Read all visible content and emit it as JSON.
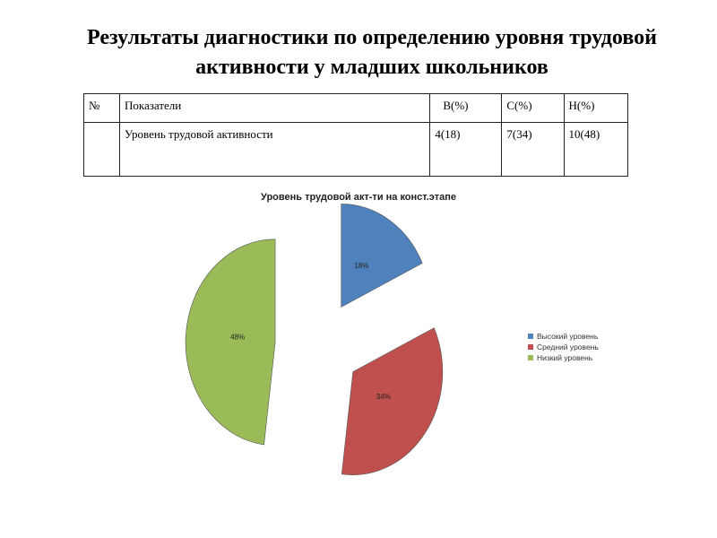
{
  "title": {
    "line1": "Результаты диагностики по определению уровня трудовой",
    "line2": "активности у младших школьников"
  },
  "table": {
    "headers": [
      "№",
      "Показатели",
      "В(%)",
      "С(%)",
      "Н(%)"
    ],
    "row": [
      "",
      "Уровень трудовой активности",
      "4(18)",
      "7(34)",
      "10(48)"
    ]
  },
  "chart_data": {
    "type": "pie",
    "title": "Уровень трудовой акт-ти на конст.этапе",
    "categories": [
      "Высокий уровень",
      "Средний уровень",
      "Низкий уровень"
    ],
    "values": [
      18,
      34,
      48
    ],
    "labels": [
      "18%",
      "34%",
      "48%"
    ],
    "colors": [
      "#4f81bd",
      "#c0504d",
      "#9bbb59"
    ],
    "exploded": true,
    "legend_position": "right"
  }
}
